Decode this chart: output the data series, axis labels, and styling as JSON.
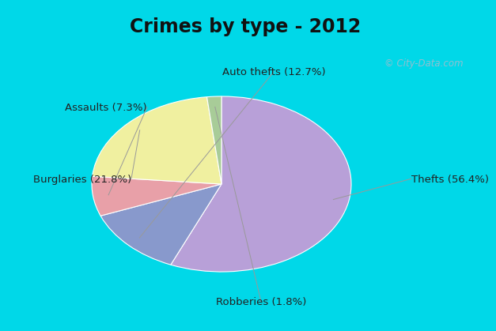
{
  "title": "Crimes by type - 2012",
  "labels": [
    "Thefts",
    "Auto thefts",
    "Assaults",
    "Burglaries",
    "Robberies"
  ],
  "values": [
    56.4,
    12.7,
    7.3,
    21.8,
    1.8
  ],
  "colors": [
    "#b8a0d8",
    "#8899cc",
    "#e8a0a8",
    "#f0f0a0",
    "#a8cc98"
  ],
  "label_texts": [
    "Thefts (56.4%)",
    "Auto thefts (12.7%)",
    "Assaults (7.3%)",
    "Burglaries (21.8%)",
    "Robberies (1.8%)"
  ],
  "background_top": "#00d8e8",
  "background_main": "#d8ede0",
  "title_fontsize": 17,
  "label_fontsize": 9.5,
  "startangle": 90,
  "watermark": "© City-Data.com"
}
